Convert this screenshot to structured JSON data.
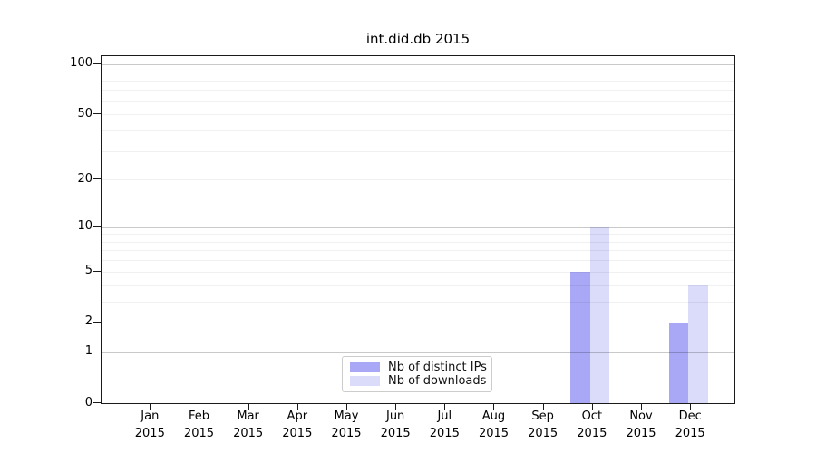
{
  "title": "int.did.db 2015",
  "chart_data": {
    "type": "bar",
    "title": "int.did.db 2015",
    "categories": [
      "Jan 2015",
      "Feb 2015",
      "Mar 2015",
      "Apr 2015",
      "May 2015",
      "Jun 2015",
      "Jul 2015",
      "Aug 2015",
      "Sep 2015",
      "Oct 2015",
      "Nov 2015",
      "Dec 2015"
    ],
    "series": [
      {
        "name": "Nb of distinct IPs",
        "color": "#a8a8f7",
        "values": [
          0,
          0,
          0,
          0,
          0,
          0,
          0,
          0,
          0,
          5,
          0,
          2
        ]
      },
      {
        "name": "Nb of downloads",
        "color": "#dbdbfa",
        "values": [
          0,
          0,
          0,
          0,
          0,
          0,
          0,
          0,
          0,
          10,
          0,
          4
        ]
      }
    ],
    "xlabel": "",
    "ylabel": "",
    "yscale": "log1p",
    "ylim": [
      0,
      112
    ],
    "yticks": [
      0,
      1,
      2,
      5,
      10,
      20,
      50,
      100
    ],
    "minor_gridlines": [
      2,
      3,
      4,
      5,
      6,
      7,
      8,
      9,
      20,
      30,
      40,
      50,
      60,
      70,
      80,
      90
    ],
    "decade_gridlines": [
      1,
      10,
      100
    ],
    "grid": true,
    "legend_position": "lower center",
    "colors": {
      "minor_grid": "rgba(0,0,0,0.06)",
      "decade_grid": "rgba(0,0,0,0.21)",
      "spine": "#1a1a1a",
      "text": "#000000"
    }
  }
}
